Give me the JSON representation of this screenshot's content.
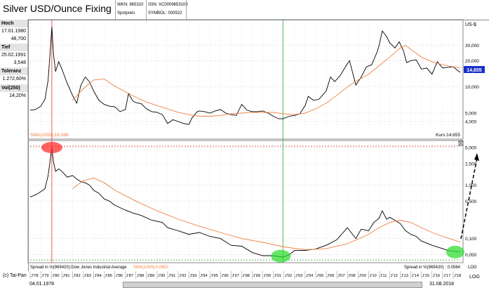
{
  "header": {
    "title": "Silver USD/Ounce Fixing",
    "wkn": "WKN: 965310",
    "isin": "ISIN: XC0009653103",
    "spot": "Spotpreis",
    "symbol": "SYMBOL: 000922"
  },
  "sidebar": {
    "hoch_label": "Hoch",
    "hoch_date": "17.01.1980",
    "hoch_value": "48,700",
    "tief_label": "Tief",
    "tief_date": "25.02.1991",
    "tief_value": "3,548",
    "tol_label": "Toleranz",
    "tol_value": "1.272,60%",
    "vol_label": "Vol(250)",
    "vol_value": "14,20%"
  },
  "top_panel": {
    "currency": "US-$",
    "sma_label": "SMA(1000):16,588",
    "kurs_label": "Kurs:14,655",
    "last_value": "14,655"
  },
  "bottom_panel": {
    "spread_label": "Spread in %(969420):Dow Jones Industrial Average",
    "sma_label": "SMA(1000):0,0857",
    "spread_right": "Spread in %(969420) : 0,0564",
    "log_label": "LOG"
  },
  "footer": {
    "copyright": "(c) Tai-Pan",
    "start_date": "04.01.1978",
    "end_date": "31.08.2018",
    "log_label": "LOG"
  },
  "colors": {
    "price": "#000000",
    "sma": "#f08040",
    "marker_red": "#ff3030",
    "marker_green": "#33dd33",
    "vline_green": "#2fa82f"
  },
  "chart_data": [
    {
      "type": "line",
      "title": "Silver USD/Ounce Fixing",
      "ylabel": "US-$",
      "scale": "log",
      "ylim": [
        3.2,
        55
      ],
      "yticks": [
        4,
        5,
        10,
        20,
        30
      ],
      "ytick_labels": [
        "4,000",
        "5,000",
        "10,000",
        "20,000",
        "30,000"
      ],
      "xlim": [
        1978.0,
        2018.67
      ],
      "series": [
        {
          "name": "Silver",
          "x": [
            1978.0,
            1978.5,
            1979.0,
            1979.4,
            1979.7,
            1979.9,
            1980.05,
            1980.2,
            1980.4,
            1980.7,
            1981.0,
            1981.5,
            1982.0,
            1982.4,
            1982.8,
            1983.2,
            1983.6,
            1984.0,
            1984.5,
            1985.0,
            1985.5,
            1986.0,
            1986.5,
            1987.0,
            1987.3,
            1987.7,
            1988.0,
            1988.5,
            1989.0,
            1989.5,
            1990.0,
            1990.5,
            1991.0,
            1991.5,
            1992.0,
            1992.5,
            1993.0,
            1993.3,
            1993.8,
            1994.0,
            1994.5,
            1995.0,
            1995.5,
            1996.0,
            1996.5,
            1997.0,
            1997.5,
            1998.0,
            1998.5,
            1999.0,
            1999.5,
            2000.0,
            2000.5,
            2001.0,
            2001.5,
            2001.9,
            2002.5,
            2003.0,
            2003.5,
            2004.0,
            2004.3,
            2004.8,
            2005.3,
            2006.0,
            2006.4,
            2006.8,
            2007.3,
            2008.0,
            2008.2,
            2008.8,
            2009.3,
            2009.8,
            2010.3,
            2010.8,
            2011.0,
            2011.3,
            2011.7,
            2012.0,
            2012.5,
            2012.9,
            2013.3,
            2013.6,
            2014.0,
            2014.5,
            2015.0,
            2015.5,
            2016.0,
            2016.5,
            2017.0,
            2017.5,
            2018.0,
            2018.67
          ],
          "y": [
            5.4,
            5.5,
            6.0,
            7.2,
            12.0,
            26.0,
            48.7,
            24.0,
            15.0,
            19.5,
            16.0,
            11.0,
            8.0,
            6.5,
            10.5,
            13.0,
            11.5,
            9.0,
            7.0,
            6.3,
            6.0,
            5.9,
            5.2,
            5.5,
            8.4,
            6.9,
            6.6,
            6.4,
            5.6,
            5.2,
            5.1,
            4.8,
            3.8,
            4.2,
            4.0,
            3.8,
            3.7,
            4.4,
            5.2,
            5.3,
            5.2,
            5.0,
            5.3,
            5.5,
            5.0,
            4.8,
            4.7,
            6.3,
            5.4,
            5.2,
            5.2,
            5.3,
            5.0,
            4.6,
            4.3,
            4.3,
            4.6,
            4.7,
            4.9,
            6.1,
            7.8,
            7.0,
            7.2,
            9.0,
            13.0,
            11.5,
            13.4,
            18.5,
            20.0,
            10.5,
            13.0,
            17.0,
            18.0,
            25.0,
            30.0,
            44.0,
            38.0,
            32.0,
            28.0,
            33.0,
            26.0,
            19.0,
            20.0,
            20.5,
            16.0,
            16.5,
            14.0,
            19.5,
            16.5,
            16.8,
            17.0,
            14.655
          ]
        },
        {
          "name": "SMA(1000)",
          "x": [
            1982.0,
            1983.0,
            1984.0,
            1985.0,
            1986.0,
            1987.0,
            1988.0,
            1989.0,
            1990.0,
            1991.0,
            1992.0,
            1993.0,
            1994.0,
            1995.0,
            1996.0,
            1997.0,
            1998.0,
            1999.0,
            2000.0,
            2001.0,
            2002.0,
            2003.0,
            2004.0,
            2005.0,
            2006.0,
            2007.0,
            2008.0,
            2009.0,
            2010.0,
            2011.0,
            2012.0,
            2013.0,
            2013.5,
            2014.0,
            2015.0,
            2016.0,
            2017.0,
            2018.0,
            2018.67
          ],
          "y": [
            7.0,
            9.5,
            12.0,
            12.3,
            10.2,
            8.8,
            7.6,
            6.7,
            6.1,
            5.6,
            5.1,
            4.8,
            4.6,
            4.6,
            4.7,
            4.9,
            5.0,
            5.1,
            5.1,
            5.1,
            4.9,
            4.8,
            5.0,
            5.6,
            6.5,
            8.0,
            10.0,
            12.0,
            14.0,
            17.5,
            22.0,
            28.0,
            30.0,
            27.0,
            22.0,
            19.5,
            18.0,
            17.0,
            16.588
          ]
        }
      ]
    },
    {
      "type": "line",
      "title": "Spread in %(969420):Dow Jones Industrial Average",
      "ylabel": "",
      "scale": "log",
      "ylim": [
        0.04,
        6.0
      ],
      "yticks": [
        0.05,
        0.1,
        0.5,
        1,
        2.5,
        5
      ],
      "ytick_labels": [
        "0,050",
        "0,100",
        "0,500",
        "1,000",
        "2,500",
        "5,000"
      ],
      "xlim": [
        1978.0,
        2018.67
      ],
      "series": [
        {
          "name": "Spread in %(969420)",
          "x": [
            1978.0,
            1978.5,
            1979.0,
            1979.4,
            1979.7,
            1979.9,
            1980.05,
            1980.2,
            1980.4,
            1980.7,
            1981.0,
            1981.5,
            1982.0,
            1982.4,
            1982.8,
            1983.2,
            1983.6,
            1984.0,
            1984.5,
            1985.0,
            1985.5,
            1986.0,
            1987.0,
            1987.7,
            1988.5,
            1989.5,
            1990.5,
            1991.0,
            1992.0,
            1993.0,
            1994.0,
            1995.0,
            1996.0,
            1997.0,
            1998.0,
            1999.0,
            2000.0,
            2001.0,
            2001.9,
            2002.5,
            2003.0,
            2004.0,
            2005.0,
            2006.0,
            2007.0,
            2008.0,
            2008.8,
            2009.3,
            2010.0,
            2010.5,
            2011.0,
            2011.3,
            2011.7,
            2012.0,
            2012.5,
            2013.0,
            2013.5,
            2014.0,
            2014.5,
            2015.0,
            2016.0,
            2017.0,
            2017.5,
            2018.0,
            2018.67
          ],
          "y": [
            0.6,
            0.65,
            0.75,
            0.85,
            1.5,
            3.0,
            5.0,
            2.7,
            1.8,
            2.0,
            1.8,
            1.4,
            1.5,
            1.3,
            1.15,
            1.1,
            1.0,
            0.8,
            0.7,
            0.55,
            0.5,
            0.42,
            0.34,
            0.3,
            0.27,
            0.22,
            0.2,
            0.16,
            0.14,
            0.12,
            0.13,
            0.11,
            0.1,
            0.075,
            0.072,
            0.055,
            0.048,
            0.048,
            0.045,
            0.05,
            0.06,
            0.06,
            0.064,
            0.075,
            0.095,
            0.16,
            0.1,
            0.15,
            0.14,
            0.2,
            0.24,
            0.33,
            0.23,
            0.25,
            0.22,
            0.19,
            0.14,
            0.12,
            0.11,
            0.09,
            0.075,
            0.065,
            0.06,
            0.058,
            0.0564
          ]
        },
        {
          "name": "SMA(1000)",
          "x": [
            1982.0,
            1983.0,
            1984.0,
            1985.0,
            1986.0,
            1988.0,
            1990.0,
            1992.0,
            1994.0,
            1996.0,
            1998.0,
            2000.0,
            2002.0,
            2004.0,
            2006.0,
            2008.0,
            2010.0,
            2011.0,
            2012.0,
            2013.0,
            2014.0,
            2015.0,
            2016.0,
            2017.0,
            2018.0,
            2018.67
          ],
          "y": [
            0.85,
            1.2,
            1.35,
            1.1,
            0.8,
            0.5,
            0.33,
            0.23,
            0.17,
            0.13,
            0.1,
            0.085,
            0.07,
            0.062,
            0.065,
            0.08,
            0.12,
            0.16,
            0.2,
            0.22,
            0.2,
            0.16,
            0.13,
            0.11,
            0.095,
            0.0857
          ]
        }
      ]
    }
  ],
  "xaxis": {
    "labels": [
      "J'78",
      "J'79",
      "J'80",
      "J'81",
      "J'82",
      "J'83",
      "J'84",
      "J'85",
      "J'86",
      "J'87",
      "J'88",
      "J'89",
      "J'90",
      "J'91",
      "J'92",
      "J'93",
      "J'94",
      "J'95",
      "J'96",
      "J'97",
      "J'98",
      "J'99",
      "J'00",
      "J'01",
      "J'02",
      "J'03",
      "J'04",
      "J'05",
      "J'06",
      "J'07",
      "J'08",
      "J'09",
      "J'10",
      "J'11",
      "J'12",
      "J'13",
      "J'14",
      "J'15",
      "J'16",
      "J'17",
      "J'18"
    ],
    "years": [
      1978,
      1979,
      1980,
      1981,
      1982,
      1983,
      1984,
      1985,
      1986,
      1987,
      1988,
      1989,
      1990,
      1991,
      1992,
      1993,
      1994,
      1995,
      1996,
      1997,
      1998,
      1999,
      2000,
      2001,
      2002,
      2003,
      2004,
      2005,
      2006,
      2007,
      2008,
      2009,
      2010,
      2011,
      2012,
      2013,
      2014,
      2015,
      2016,
      2017,
      2018
    ]
  },
  "markers": {
    "peak_year": 1980.05,
    "trough_year": 2001.9
  }
}
